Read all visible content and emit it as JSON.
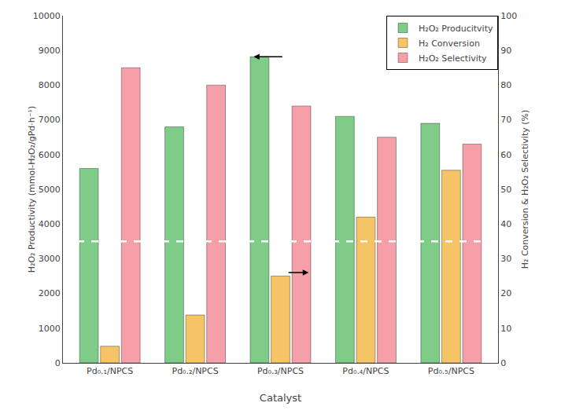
{
  "chart_data": {
    "type": "bar",
    "categories": [
      "Pd₀.₁/NPCS",
      "Pd₀.₂/NPCS",
      "Pd₀.₃/NPCS",
      "Pd₀.₄/NPCS",
      "Pd₀.₅/NPCS"
    ],
    "series": [
      {
        "name": "H₂O₂ Producitvity",
        "color": "#7FCC88",
        "values": [
          5600,
          6800,
          8820,
          7100,
          6900
        ]
      },
      {
        "name": "H₂ Conversion",
        "color": "#F5C467",
        "values": [
          480,
          1380,
          2500,
          4200,
          5550
        ]
      },
      {
        "name": "H₂O₂ Selectivity",
        "color": "#F5A0A8",
        "values": [
          85,
          80,
          74,
          65,
          63
        ],
        "axis": "y2"
      }
    ],
    "x_label": "Catalyst",
    "y_label": "H₂O₂ Productivity (mmol-H₂O₂/gPd·h⁻¹)",
    "y2_label": "H₂ Conversion & H₂O₂ Selectivity (%)",
    "ylim": [
      0,
      10000
    ],
    "yticks": [
      0,
      1000,
      2000,
      3000,
      4000,
      5000,
      6000,
      7000,
      8000,
      9000,
      10000
    ],
    "y2lim": [
      0,
      100
    ],
    "y2ticks": [
      0,
      10,
      20,
      30,
      40,
      50,
      60,
      70,
      80,
      90,
      100
    ],
    "reference_lines": [
      {
        "y": 3500,
        "color": "white",
        "line_style": "dashed"
      }
    ],
    "arrows": [
      {
        "category": "Pd₀.₃/NPCS",
        "series": "H₂O₂ Producitvity",
        "y": 8820,
        "direction": "left"
      },
      {
        "category": "Pd₀.₃/NPCS",
        "series": "H₂ Conversion",
        "y": 2600,
        "direction": "right"
      }
    ],
    "legend": "upper right",
    "grid": false
  }
}
